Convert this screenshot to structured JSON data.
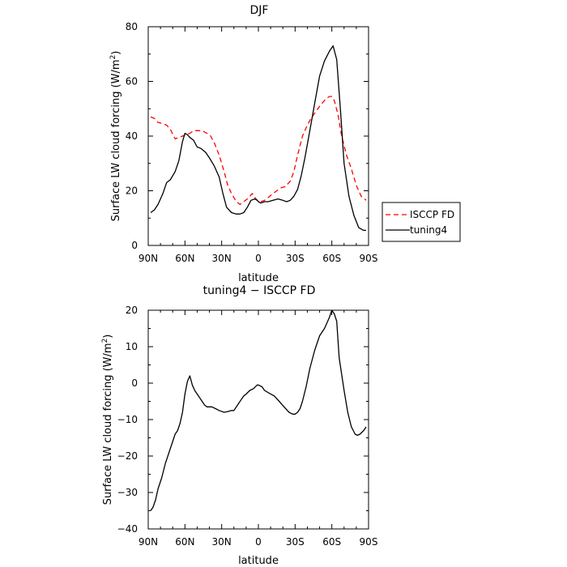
{
  "chart_data": [
    {
      "type": "line",
      "title": "DJF",
      "xlabel": "latitude",
      "ylabel": "Surface LW cloud forcing (W/m",
      "ylabel_sup": "2",
      "ylabel_end": ")",
      "xlim": [
        90,
        -90
      ],
      "ylim": [
        0,
        80
      ],
      "xticks": [
        {
          "v": 90,
          "label": "90N"
        },
        {
          "v": 60,
          "label": "60N"
        },
        {
          "v": 30,
          "label": "30N"
        },
        {
          "v": 0,
          "label": "0"
        },
        {
          "v": -30,
          "label": "30S"
        },
        {
          "v": -60,
          "label": "60S"
        },
        {
          "v": -90,
          "label": "90S"
        }
      ],
      "yticks": [
        0,
        20,
        40,
        60,
        80
      ],
      "legend": {
        "placement": "outside-right-bottom"
      },
      "series": [
        {
          "name": "ISCCP FD",
          "color": "#ff0000",
          "dash": "dashed",
          "x": [
            88,
            85,
            82,
            78,
            75,
            72,
            68,
            65,
            62,
            59,
            56,
            53,
            50,
            46,
            42,
            39,
            36,
            32,
            28,
            25,
            22,
            18,
            15,
            12,
            9,
            5,
            2,
            0,
            -2,
            -5,
            -8,
            -12,
            -15,
            -18,
            -22,
            -26,
            -29,
            -32,
            -36,
            -40,
            -43,
            -47,
            -51,
            -55,
            -58,
            -60,
            -62,
            -65,
            -68,
            -72,
            -76,
            -80,
            -84,
            -88
          ],
          "y": [
            47,
            46.5,
            45,
            44.5,
            44,
            42.5,
            39,
            39.5,
            40,
            40.5,
            41,
            42,
            42,
            42,
            41,
            40,
            37.5,
            33,
            27,
            22,
            19,
            16,
            15,
            16,
            17,
            19,
            17,
            16,
            16,
            16.5,
            17.5,
            19,
            20,
            21,
            21.5,
            23.5,
            27,
            33,
            40,
            44,
            46.5,
            49,
            51.5,
            53.5,
            54.5,
            54.5,
            53,
            48,
            40,
            33,
            28,
            22,
            18,
            16.5
          ]
        },
        {
          "name": "tuning4",
          "color": "#000000",
          "dash": "solid",
          "x": [
            88,
            85,
            82,
            78,
            75,
            72,
            68,
            65,
            62,
            60,
            58,
            56,
            53,
            50,
            47,
            43,
            40,
            36,
            32,
            29,
            26,
            22,
            18,
            15,
            12,
            9,
            6,
            3,
            1,
            0,
            -2,
            -5,
            -8,
            -12,
            -16,
            -20,
            -23,
            -26,
            -29,
            -32,
            -35,
            -38,
            -42,
            -46,
            -50,
            -54,
            -58,
            -61,
            -64,
            -67,
            -70,
            -74,
            -78,
            -82,
            -86,
            -88
          ],
          "y": [
            12,
            13,
            15,
            19,
            23,
            24,
            27,
            31,
            38,
            41,
            40.5,
            39.5,
            38.5,
            36,
            35.5,
            34,
            32,
            29,
            25,
            19,
            14,
            12,
            11.5,
            11.5,
            12,
            14,
            16.5,
            17,
            16.5,
            16,
            15.5,
            16,
            16,
            16.5,
            17,
            16.5,
            16,
            16.5,
            18,
            20.5,
            25.5,
            32,
            42,
            52,
            62,
            67.5,
            71,
            73,
            68,
            50,
            30,
            18,
            11,
            6.5,
            5.5,
            5.5
          ]
        }
      ]
    },
    {
      "type": "line",
      "title": "tuning4 − ISCCP FD",
      "xlabel": "latitude",
      "ylabel": "Surface LW cloud forcing (W/m",
      "ylabel_sup": "2",
      "ylabel_end": ")",
      "xlim": [
        90,
        -90
      ],
      "ylim": [
        -40,
        20
      ],
      "xticks": [
        {
          "v": 90,
          "label": "90N"
        },
        {
          "v": 60,
          "label": "60N"
        },
        {
          "v": 30,
          "label": "30N"
        },
        {
          "v": 0,
          "label": "0"
        },
        {
          "v": -30,
          "label": "30S"
        },
        {
          "v": -60,
          "label": "60S"
        },
        {
          "v": -90,
          "label": "90S"
        }
      ],
      "yticks": [
        -40,
        -30,
        -20,
        -10,
        0,
        10,
        20
      ],
      "series": [
        {
          "name": "",
          "color": "#000000",
          "dash": "solid",
          "x": [
            88,
            86,
            84,
            82,
            79,
            76,
            73,
            71,
            68,
            66,
            64,
            62,
            60,
            58,
            56,
            54,
            52,
            50,
            48,
            46,
            44,
            42,
            40,
            38,
            35,
            32,
            28,
            25,
            22,
            20,
            17,
            14,
            12,
            10,
            7,
            4,
            1,
            0,
            -3,
            -5,
            -9,
            -13,
            -17,
            -21,
            -25,
            -28,
            -30,
            -32,
            -34,
            -36,
            -39,
            -42,
            -46,
            -50,
            -54,
            -58,
            -60,
            -62,
            -64,
            -66,
            -70,
            -73,
            -76,
            -79,
            -81,
            -83,
            -86,
            -88
          ],
          "y": [
            -35,
            -34,
            -32,
            -29,
            -26,
            -22,
            -19,
            -17,
            -14,
            -13,
            -11,
            -8,
            -3,
            0.5,
            2,
            -0.5,
            -2,
            -3,
            -4,
            -5,
            -6,
            -6.5,
            -6.5,
            -6.5,
            -7,
            -7.5,
            -8,
            -7.8,
            -7.5,
            -7.5,
            -6,
            -4.5,
            -3.5,
            -3,
            -2,
            -1.5,
            -0.5,
            -0.5,
            -1,
            -2,
            -2.8,
            -3.5,
            -5,
            -6.5,
            -8,
            -8.5,
            -8.5,
            -8,
            -7,
            -5,
            -1,
            4,
            9,
            13,
            15,
            18,
            20,
            19,
            17,
            7,
            -2,
            -8,
            -12,
            -14,
            -14.3,
            -14,
            -13,
            -12
          ]
        }
      ]
    }
  ]
}
